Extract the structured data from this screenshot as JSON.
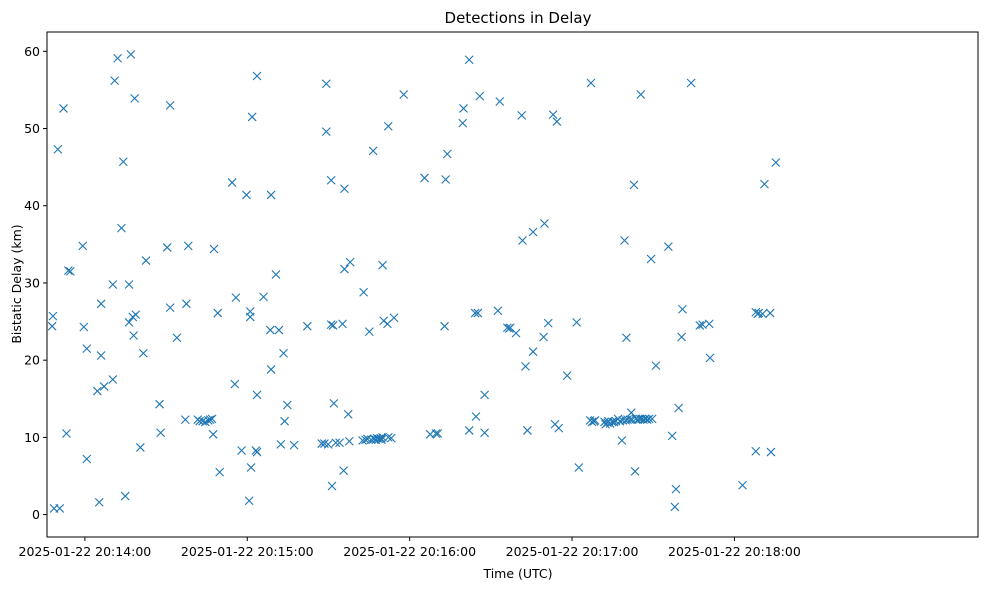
{
  "chart_data": {
    "type": "scatter",
    "title": "Detections in Delay",
    "xlabel": "Time (UTC)",
    "ylabel": "Bistatic Delay (km)",
    "marker": "x",
    "color": "#1f77b4",
    "grid": false,
    "x_axis_type": "time",
    "xlim": [
      "2025-01-22 20:13:46",
      "2025-01-22 20:19:30"
    ],
    "ylim": [
      -2.9,
      62.5
    ],
    "x_ticks": [
      {
        "t": "2025-01-22 20:14:00",
        "label": "2025-01-22 20:14:00"
      },
      {
        "t": "2025-01-22 20:15:00",
        "label": "2025-01-22 20:15:00"
      },
      {
        "t": "2025-01-22 20:16:00",
        "label": "2025-01-22 20:16:00"
      },
      {
        "t": "2025-01-22 20:17:00",
        "label": "2025-01-22 20:17:00"
      },
      {
        "t": "2025-01-22 20:18:00",
        "label": "2025-01-22 20:18:00"
      }
    ],
    "y_ticks": [
      0,
      10,
      20,
      30,
      40,
      50,
      60
    ],
    "points": [
      {
        "t": "2025-01-22 20:13:47.9",
        "y": 24.4
      },
      {
        "t": "2025-01-22 20:13:48.2",
        "y": 25.7
      },
      {
        "t": "2025-01-22 20:13:48.6",
        "y": 0.8
      },
      {
        "t": "2025-01-22 20:13:50.0",
        "y": 47.3
      },
      {
        "t": "2025-01-22 20:13:50.7",
        "y": 0.8
      },
      {
        "t": "2025-01-22 20:13:52.1",
        "y": 52.6
      },
      {
        "t": "2025-01-22 20:13:53.2",
        "y": 10.5
      },
      {
        "t": "2025-01-22 20:13:53.9",
        "y": 31.6
      },
      {
        "t": "2025-01-22 20:13:54.6",
        "y": 31.5
      },
      {
        "t": "2025-01-22 20:13:59.2",
        "y": 34.8
      },
      {
        "t": "2025-01-22 20:13:59.6",
        "y": 24.3
      },
      {
        "t": "2025-01-22 20:14:00.7",
        "y": 21.5
      },
      {
        "t": "2025-01-22 20:14:00.7",
        "y": 7.2
      },
      {
        "t": "2025-01-22 20:14:04.6",
        "y": 16.0
      },
      {
        "t": "2025-01-22 20:14:05.3",
        "y": 1.6
      },
      {
        "t": "2025-01-22 20:14:06.0",
        "y": 27.3
      },
      {
        "t": "2025-01-22 20:14:06.0",
        "y": 20.6
      },
      {
        "t": "2025-01-22 20:14:07.1",
        "y": 16.6
      },
      {
        "t": "2025-01-22 20:14:10.3",
        "y": 17.5
      },
      {
        "t": "2025-01-22 20:14:10.3",
        "y": 29.8
      },
      {
        "t": "2025-01-22 20:14:11.0",
        "y": 56.2
      },
      {
        "t": "2025-01-22 20:14:12.1",
        "y": 59.1
      },
      {
        "t": "2025-01-22 20:14:13.5",
        "y": 37.1
      },
      {
        "t": "2025-01-22 20:14:14.2",
        "y": 45.7
      },
      {
        "t": "2025-01-22 20:14:14.9",
        "y": 2.4
      },
      {
        "t": "2025-01-22 20:14:16.3",
        "y": 24.9
      },
      {
        "t": "2025-01-22 20:14:16.3",
        "y": 29.8
      },
      {
        "t": "2025-01-22 20:14:17.0",
        "y": 59.6
      },
      {
        "t": "2025-01-22 20:14:17.7",
        "y": 25.6
      },
      {
        "t": "2025-01-22 20:14:18.0",
        "y": 23.2
      },
      {
        "t": "2025-01-22 20:14:18.4",
        "y": 53.9
      },
      {
        "t": "2025-01-22 20:14:18.8",
        "y": 25.9
      },
      {
        "t": "2025-01-22 20:14:20.5",
        "y": 8.7
      },
      {
        "t": "2025-01-22 20:14:21.6",
        "y": 20.9
      },
      {
        "t": "2025-01-22 20:14:22.6",
        "y": 32.9
      },
      {
        "t": "2025-01-22 20:14:27.6",
        "y": 14.3
      },
      {
        "t": "2025-01-22 20:14:28.0",
        "y": 10.6
      },
      {
        "t": "2025-01-22 20:14:30.4",
        "y": 34.6
      },
      {
        "t": "2025-01-22 20:14:31.5",
        "y": 26.8
      },
      {
        "t": "2025-01-22 20:14:31.5",
        "y": 53.0
      },
      {
        "t": "2025-01-22 20:14:34.0",
        "y": 22.9
      },
      {
        "t": "2025-01-22 20:14:37.1",
        "y": 12.3
      },
      {
        "t": "2025-01-22 20:14:37.5",
        "y": 27.3
      },
      {
        "t": "2025-01-22 20:14:38.2",
        "y": 34.8
      },
      {
        "t": "2025-01-22 20:14:41.7",
        "y": 12.3
      },
      {
        "t": "2025-01-22 20:14:42.4",
        "y": 12.1
      },
      {
        "t": "2025-01-22 20:14:43.5",
        "y": 12.1
      },
      {
        "t": "2025-01-22 20:14:44.5",
        "y": 12.0
      },
      {
        "t": "2025-01-22 20:14:45.6",
        "y": 12.2
      },
      {
        "t": "2025-01-22 20:14:46.3",
        "y": 12.3
      },
      {
        "t": "2025-01-22 20:14:47.0",
        "y": 12.4
      },
      {
        "t": "2025-01-22 20:14:47.4",
        "y": 10.4
      },
      {
        "t": "2025-01-22 20:14:47.7",
        "y": 34.4
      },
      {
        "t": "2025-01-22 20:14:49.1",
        "y": 26.1
      },
      {
        "t": "2025-01-22 20:14:49.8",
        "y": 5.5
      },
      {
        "t": "2025-01-22 20:14:54.4",
        "y": 43.0
      },
      {
        "t": "2025-01-22 20:14:55.4",
        "y": 16.9
      },
      {
        "t": "2025-01-22 20:14:55.8",
        "y": 28.1
      },
      {
        "t": "2025-01-22 20:14:57.9",
        "y": 8.3
      },
      {
        "t": "2025-01-22 20:14:59.7",
        "y": 41.4
      },
      {
        "t": "2025-01-22 20:15:00.7",
        "y": 1.8
      },
      {
        "t": "2025-01-22 20:15:01.1",
        "y": 26.3
      },
      {
        "t": "2025-01-22 20:15:01.1",
        "y": 25.6
      },
      {
        "t": "2025-01-22 20:15:01.4",
        "y": 6.1
      },
      {
        "t": "2025-01-22 20:15:01.8",
        "y": 51.5
      },
      {
        "t": "2025-01-22 20:15:03.2",
        "y": 8.3
      },
      {
        "t": "2025-01-22 20:15:03.6",
        "y": 8.1
      },
      {
        "t": "2025-01-22 20:15:03.6",
        "y": 15.5
      },
      {
        "t": "2025-01-22 20:15:03.6",
        "y": 56.8
      },
      {
        "t": "2025-01-22 20:15:06.0",
        "y": 28.2
      },
      {
        "t": "2025-01-22 20:15:08.5",
        "y": 23.9
      },
      {
        "t": "2025-01-22 20:15:08.8",
        "y": 18.8
      },
      {
        "t": "2025-01-22 20:15:08.8",
        "y": 41.4
      },
      {
        "t": "2025-01-22 20:15:10.6",
        "y": 31.1
      },
      {
        "t": "2025-01-22 20:15:11.7",
        "y": 23.9
      },
      {
        "t": "2025-01-22 20:15:12.4",
        "y": 9.1
      },
      {
        "t": "2025-01-22 20:15:13.4",
        "y": 20.9
      },
      {
        "t": "2025-01-22 20:15:13.8",
        "y": 12.1
      },
      {
        "t": "2025-01-22 20:15:14.8",
        "y": 14.2
      },
      {
        "t": "2025-01-22 20:15:17.3",
        "y": 9.0
      },
      {
        "t": "2025-01-22 20:15:22.2",
        "y": 24.4
      },
      {
        "t": "2025-01-22 20:15:27.5",
        "y": 9.2
      },
      {
        "t": "2025-01-22 20:15:28.5",
        "y": 9.2
      },
      {
        "t": "2025-01-22 20:15:29.2",
        "y": 55.8
      },
      {
        "t": "2025-01-22 20:15:29.2",
        "y": 49.6
      },
      {
        "t": "2025-01-22 20:15:29.9",
        "y": 9.1
      },
      {
        "t": "2025-01-22 20:15:31.0",
        "y": 43.3
      },
      {
        "t": "2025-01-22 20:15:31.0",
        "y": 24.6
      },
      {
        "t": "2025-01-22 20:15:31.3",
        "y": 3.7
      },
      {
        "t": "2025-01-22 20:15:31.7",
        "y": 24.5
      },
      {
        "t": "2025-01-22 20:15:32.0",
        "y": 14.4
      },
      {
        "t": "2025-01-22 20:15:32.7",
        "y": 9.3
      },
      {
        "t": "2025-01-22 20:15:34.1",
        "y": 9.3
      },
      {
        "t": "2025-01-22 20:15:35.2",
        "y": 24.7
      },
      {
        "t": "2025-01-22 20:15:35.6",
        "y": 5.7
      },
      {
        "t": "2025-01-22 20:15:35.9",
        "y": 31.8
      },
      {
        "t": "2025-01-22 20:15:35.9",
        "y": 42.2
      },
      {
        "t": "2025-01-22 20:15:37.3",
        "y": 13.0
      },
      {
        "t": "2025-01-22 20:15:37.7",
        "y": 9.5
      },
      {
        "t": "2025-01-22 20:15:38.0",
        "y": 32.7
      },
      {
        "t": "2025-01-22 20:15:42.6",
        "y": 9.6
      },
      {
        "t": "2025-01-22 20:15:43.0",
        "y": 28.8
      },
      {
        "t": "2025-01-22 20:15:43.7",
        "y": 9.7
      },
      {
        "t": "2025-01-22 20:15:44.4",
        "y": 9.8
      },
      {
        "t": "2025-01-22 20:15:45.1",
        "y": 23.7
      },
      {
        "t": "2025-01-22 20:15:45.8",
        "y": 9.7
      },
      {
        "t": "2025-01-22 20:15:46.5",
        "y": 47.1
      },
      {
        "t": "2025-01-22 20:15:46.8",
        "y": 9.8
      },
      {
        "t": "2025-01-22 20:15:47.5",
        "y": 9.7
      },
      {
        "t": "2025-01-22 20:15:47.9",
        "y": 9.9
      },
      {
        "t": "2025-01-22 20:15:48.6",
        "y": 9.8
      },
      {
        "t": "2025-01-22 20:15:49.3",
        "y": 9.9
      },
      {
        "t": "2025-01-22 20:15:49.6",
        "y": 9.7
      },
      {
        "t": "2025-01-22 20:15:50.0",
        "y": 10.0
      },
      {
        "t": "2025-01-22 20:15:50.0",
        "y": 32.3
      },
      {
        "t": "2025-01-22 20:15:50.4",
        "y": 25.1
      },
      {
        "t": "2025-01-22 20:15:51.8",
        "y": 24.7
      },
      {
        "t": "2025-01-22 20:15:52.1",
        "y": 10.0
      },
      {
        "t": "2025-01-22 20:15:52.1",
        "y": 50.3
      },
      {
        "t": "2025-01-22 20:15:53.2",
        "y": 9.9
      },
      {
        "t": "2025-01-22 20:15:54.2",
        "y": 25.5
      },
      {
        "t": "2025-01-22 20:15:57.8",
        "y": 54.4
      },
      {
        "t": "2025-01-22 20:16:05.5",
        "y": 43.6
      },
      {
        "t": "2025-01-22 20:16:07.6",
        "y": 10.4
      },
      {
        "t": "2025-01-22 20:16:09.7",
        "y": 10.5
      },
      {
        "t": "2025-01-22 20:16:10.4",
        "y": 10.5
      },
      {
        "t": "2025-01-22 20:16:12.9",
        "y": 24.4
      },
      {
        "t": "2025-01-22 20:16:13.3",
        "y": 43.4
      },
      {
        "t": "2025-01-22 20:16:13.9",
        "y": 46.7
      },
      {
        "t": "2025-01-22 20:16:19.6",
        "y": 50.7
      },
      {
        "t": "2025-01-22 20:16:19.9",
        "y": 52.6
      },
      {
        "t": "2025-01-22 20:16:22.0",
        "y": 10.9
      },
      {
        "t": "2025-01-22 20:16:22.0",
        "y": 58.9
      },
      {
        "t": "2025-01-22 20:16:24.2",
        "y": 26.1
      },
      {
        "t": "2025-01-22 20:16:24.5",
        "y": 12.7
      },
      {
        "t": "2025-01-22 20:16:25.2",
        "y": 26.1
      },
      {
        "t": "2025-01-22 20:16:25.9",
        "y": 54.2
      },
      {
        "t": "2025-01-22 20:16:27.7",
        "y": 15.5
      },
      {
        "t": "2025-01-22 20:16:27.7",
        "y": 10.6
      },
      {
        "t": "2025-01-22 20:16:32.6",
        "y": 26.4
      },
      {
        "t": "2025-01-22 20:16:33.3",
        "y": 53.5
      },
      {
        "t": "2025-01-22 20:16:36.1",
        "y": 24.2
      },
      {
        "t": "2025-01-22 20:16:36.8",
        "y": 24.1
      },
      {
        "t": "2025-01-22 20:16:37.2",
        "y": 24.2
      },
      {
        "t": "2025-01-22 20:16:39.3",
        "y": 23.5
      },
      {
        "t": "2025-01-22 20:16:41.4",
        "y": 51.7
      },
      {
        "t": "2025-01-22 20:16:41.7",
        "y": 35.5
      },
      {
        "t": "2025-01-22 20:16:42.8",
        "y": 19.2
      },
      {
        "t": "2025-01-22 20:16:43.5",
        "y": 10.9
      },
      {
        "t": "2025-01-22 20:16:45.6",
        "y": 21.1
      },
      {
        "t": "2025-01-22 20:16:45.6",
        "y": 36.6
      },
      {
        "t": "2025-01-22 20:16:49.5",
        "y": 23.0
      },
      {
        "t": "2025-01-22 20:16:49.8",
        "y": 37.7
      },
      {
        "t": "2025-01-22 20:16:51.2",
        "y": 24.8
      },
      {
        "t": "2025-01-22 20:16:53.0",
        "y": 51.8
      },
      {
        "t": "2025-01-22 20:16:53.7",
        "y": 11.7
      },
      {
        "t": "2025-01-22 20:16:54.4",
        "y": 50.9
      },
      {
        "t": "2025-01-22 20:16:55.1",
        "y": 11.2
      },
      {
        "t": "2025-01-22 20:16:58.2",
        "y": 18.0
      },
      {
        "t": "2025-01-22 20:17:01.7",
        "y": 24.9
      },
      {
        "t": "2025-01-22 20:17:02.5",
        "y": 6.1
      },
      {
        "t": "2025-01-22 20:17:06.7",
        "y": 12.2
      },
      {
        "t": "2025-01-22 20:17:07.0",
        "y": 55.9
      },
      {
        "t": "2025-01-22 20:17:07.4",
        "y": 12.0
      },
      {
        "t": "2025-01-22 20:17:08.1",
        "y": 12.1
      },
      {
        "t": "2025-01-22 20:17:08.5",
        "y": 12.2
      },
      {
        "t": "2025-01-22 20:17:12.0",
        "y": 12.0
      },
      {
        "t": "2025-01-22 20:17:12.4",
        "y": 11.7
      },
      {
        "t": "2025-01-22 20:17:13.1",
        "y": 11.9
      },
      {
        "t": "2025-01-22 20:17:13.4",
        "y": 12.1
      },
      {
        "t": "2025-01-22 20:17:14.1",
        "y": 11.8
      },
      {
        "t": "2025-01-22 20:17:14.8",
        "y": 12.0
      },
      {
        "t": "2025-01-22 20:17:15.5",
        "y": 12.0
      },
      {
        "t": "2025-01-22 20:17:16.2",
        "y": 12.1
      },
      {
        "t": "2025-01-22 20:17:17.0",
        "y": 12.4
      },
      {
        "t": "2025-01-22 20:17:17.7",
        "y": 12.1
      },
      {
        "t": "2025-01-22 20:17:18.4",
        "y": 9.6
      },
      {
        "t": "2025-01-22 20:17:18.7",
        "y": 12.2
      },
      {
        "t": "2025-01-22 20:17:19.4",
        "y": 35.5
      },
      {
        "t": "2025-01-22 20:17:19.8",
        "y": 12.2
      },
      {
        "t": "2025-01-22 20:17:20.1",
        "y": 22.9
      },
      {
        "t": "2025-01-22 20:17:20.5",
        "y": 12.3
      },
      {
        "t": "2025-01-22 20:17:21.5",
        "y": 12.3
      },
      {
        "t": "2025-01-22 20:17:21.9",
        "y": 13.2
      },
      {
        "t": "2025-01-22 20:17:22.2",
        "y": 12.3
      },
      {
        "t": "2025-01-22 20:17:22.9",
        "y": 42.7
      },
      {
        "t": "2025-01-22 20:17:23.3",
        "y": 5.6
      },
      {
        "t": "2025-01-22 20:17:23.6",
        "y": 12.4
      },
      {
        "t": "2025-01-22 20:17:24.3",
        "y": 12.3
      },
      {
        "t": "2025-01-22 20:17:25.0",
        "y": 12.4
      },
      {
        "t": "2025-01-22 20:17:25.4",
        "y": 54.4
      },
      {
        "t": "2025-01-22 20:17:25.7",
        "y": 12.4
      },
      {
        "t": "2025-01-22 20:17:26.4",
        "y": 12.3
      },
      {
        "t": "2025-01-22 20:17:27.1",
        "y": 12.4
      },
      {
        "t": "2025-01-22 20:17:27.8",
        "y": 12.3
      },
      {
        "t": "2025-01-22 20:17:28.5",
        "y": 12.4
      },
      {
        "t": "2025-01-22 20:17:29.2",
        "y": 33.1
      },
      {
        "t": "2025-01-22 20:17:29.6",
        "y": 12.4
      },
      {
        "t": "2025-01-22 20:17:31.0",
        "y": 19.3
      },
      {
        "t": "2025-01-22 20:17:35.6",
        "y": 34.7
      },
      {
        "t": "2025-01-22 20:17:37.0",
        "y": 10.2
      },
      {
        "t": "2025-01-22 20:17:38.0",
        "y": 1.0
      },
      {
        "t": "2025-01-22 20:17:38.4",
        "y": 3.3
      },
      {
        "t": "2025-01-22 20:17:39.4",
        "y": 13.8
      },
      {
        "t": "2025-01-22 20:17:40.5",
        "y": 23.0
      },
      {
        "t": "2025-01-22 20:17:40.8",
        "y": 26.6
      },
      {
        "t": "2025-01-22 20:17:44.0",
        "y": 55.9
      },
      {
        "t": "2025-01-22 20:17:47.2",
        "y": 24.5
      },
      {
        "t": "2025-01-22 20:17:48.2",
        "y": 24.6
      },
      {
        "t": "2025-01-22 20:17:50.7",
        "y": 24.7
      },
      {
        "t": "2025-01-22 20:17:51.0",
        "y": 20.3
      },
      {
        "t": "2025-01-22 20:18:03.0",
        "y": 3.8
      },
      {
        "t": "2025-01-22 20:18:07.9",
        "y": 8.2
      },
      {
        "t": "2025-01-22 20:18:07.9",
        "y": 26.2
      },
      {
        "t": "2025-01-22 20:18:08.6",
        "y": 26.0
      },
      {
        "t": "2025-01-22 20:18:09.0",
        "y": 26.1
      },
      {
        "t": "2025-01-22 20:18:10.4",
        "y": 26.0
      },
      {
        "t": "2025-01-22 20:18:11.1",
        "y": 42.8
      },
      {
        "t": "2025-01-22 20:18:13.2",
        "y": 26.1
      },
      {
        "t": "2025-01-22 20:18:13.5",
        "y": 8.1
      },
      {
        "t": "2025-01-22 20:18:15.3",
        "y": 45.6
      }
    ]
  }
}
